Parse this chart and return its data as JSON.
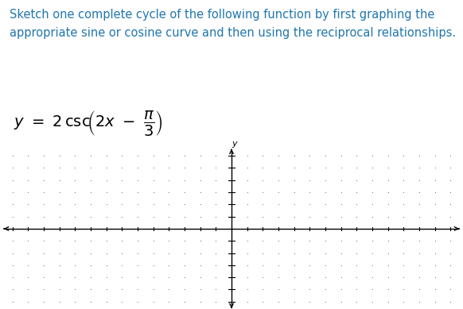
{
  "instruction_line1": "Sketch one complete cycle of the following function by first graphing the",
  "instruction_line2": "appropriate sine or cosine curve and then using the reciprocal relationships.",
  "text_color": "#2176AE",
  "background_color": "#ffffff",
  "dot_color": "#555555",
  "axis_color": "#000000",
  "xlim": [
    -14,
    14
  ],
  "ylim": [
    -6,
    6
  ],
  "figsize": [
    5.82,
    3.89
  ],
  "dpi": 100,
  "instruction_fontsize": 10.5,
  "formula_fontsize": 14
}
